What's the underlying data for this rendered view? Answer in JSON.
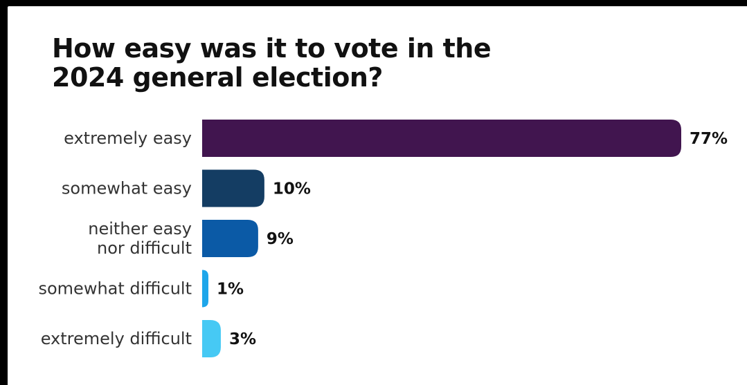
{
  "chart_data": {
    "type": "bar",
    "orientation": "horizontal",
    "title": "How easy was it to vote in the 2024 general election?",
    "categories": [
      [
        "extremely easy"
      ],
      [
        "somewhat easy"
      ],
      [
        "neither easy",
        "nor difficult"
      ],
      [
        "somewhat difficult"
      ],
      [
        "extremely difficult"
      ]
    ],
    "values": [
      77,
      10,
      9,
      1,
      3
    ],
    "value_labels": [
      "77%",
      "10%",
      "9%",
      "1%",
      "3%"
    ],
    "colors": [
      "#41154f",
      "#143d63",
      "#0b5aa6",
      "#1ea6ea",
      "#46c9f4"
    ],
    "xlim": [
      0,
      77
    ],
    "grid": false,
    "legend": "none"
  }
}
